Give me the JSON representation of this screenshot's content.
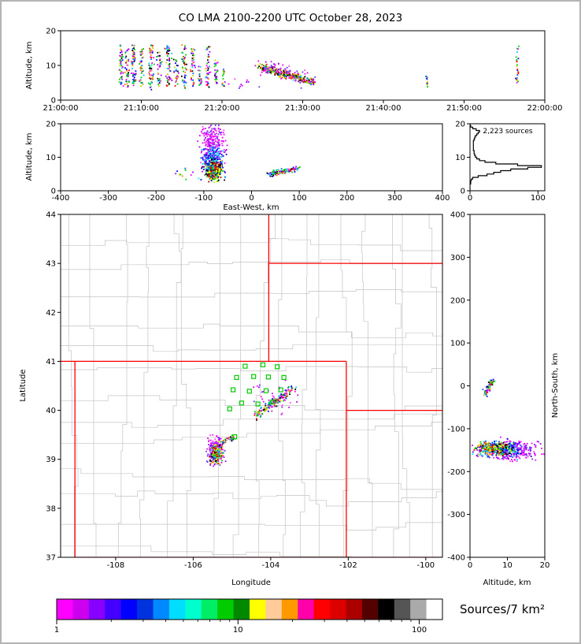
{
  "title": "CO LMA 2100-2200 UTC October 28, 2023",
  "colorbar": {
    "label": "Sources/7 km²",
    "log_max": 2.128,
    "colors": [
      "#ff00ff",
      "#cc00ee",
      "#8800ff",
      "#4400ff",
      "#0000ff",
      "#0033dd",
      "#0088ff",
      "#00ddff",
      "#00ffcc",
      "#00ee66",
      "#00cc00",
      "#008800",
      "#ffff00",
      "#ffcc99",
      "#ff9900",
      "#ff00aa",
      "#ff0000",
      "#dd0000",
      "#aa0000",
      "#550000",
      "#000000",
      "#555555",
      "#aaaaaa",
      "#ffffff"
    ],
    "major_ticks": [
      {
        "value": 1,
        "label": "1"
      },
      {
        "value": 10,
        "label": "10"
      },
      {
        "value": 100,
        "label": "100"
      }
    ],
    "minor_ticks": [
      2,
      3,
      4,
      5,
      6,
      7,
      8,
      9,
      20,
      30,
      40,
      50,
      60,
      70,
      80,
      90
    ]
  },
  "palettes": {
    "fringe": [
      "#ff00ff",
      "#ff00ff",
      "#cc00ee",
      "#9900ff",
      "#cc00ee",
      "#6633ff",
      "#ff44ff"
    ],
    "cool": [
      "#0000ff",
      "#0055ff",
      "#00aaff",
      "#00eeff",
      "#4400ee",
      "#0000cc",
      "#00ddff"
    ],
    "core": [
      "#00cc00",
      "#aaff00",
      "#ffff00",
      "#ff9900",
      "#ff0000",
      "#aa0000",
      "#000000",
      "#00ccff",
      "#0066ff",
      "#00cc00",
      "#ffff00",
      "#ff0000",
      "#000000"
    ],
    "mixed": [
      "#0000ff",
      "#00cc00",
      "#ff0000",
      "#00ccff",
      "#ff00ff",
      "#cccc00",
      "#9900ff",
      "#000000",
      "#0066ff",
      "#00cc00",
      "#ff8800"
    ]
  },
  "chart_data": [
    {
      "id": "time-height",
      "type": "scatter",
      "ylabel": "Altitude, km",
      "xlim": [
        0,
        3600
      ],
      "ylim": [
        0,
        20
      ],
      "seed": 11,
      "x_ticks": [
        {
          "v": 0,
          "label": "21:00:00"
        },
        {
          "v": 600,
          "label": "21:10:00"
        },
        {
          "v": 1200,
          "label": "21:20:00"
        },
        {
          "v": 1800,
          "label": "21:30:00"
        },
        {
          "v": 2400,
          "label": "21:40:00"
        },
        {
          "v": 3000,
          "label": "21:50:00"
        },
        {
          "v": 3600,
          "label": "22:00:00"
        }
      ],
      "y_ticks": [
        {
          "v": 0,
          "label": "0"
        },
        {
          "v": 10,
          "label": "10"
        },
        {
          "v": 20,
          "label": "20"
        }
      ],
      "clusters": [
        {
          "kind": "vline",
          "x": 450,
          "y0": 4,
          "y1": 16,
          "n": 45,
          "jx": 8,
          "palette": "mixed"
        },
        {
          "kind": "vline",
          "x": 497,
          "y0": 3.5,
          "y1": 15,
          "n": 40,
          "jx": 8,
          "palette": "mixed"
        },
        {
          "kind": "vline",
          "x": 545,
          "y0": 4,
          "y1": 16.5,
          "n": 50,
          "jx": 8,
          "palette": "mixed"
        },
        {
          "kind": "vline",
          "x": 603,
          "y0": 4,
          "y1": 15,
          "n": 38,
          "jx": 8,
          "palette": "mixed"
        },
        {
          "kind": "vline",
          "x": 672,
          "y0": 3,
          "y1": 16,
          "n": 55,
          "jx": 10,
          "palette": "mixed"
        },
        {
          "kind": "vline",
          "x": 732,
          "y0": 4,
          "y1": 14,
          "n": 32,
          "jx": 8,
          "palette": "mixed"
        },
        {
          "kind": "vline",
          "x": 800,
          "y0": 3.5,
          "y1": 16,
          "n": 50,
          "jx": 10,
          "palette": "mixed"
        },
        {
          "kind": "vline",
          "x": 860,
          "y0": 4,
          "y1": 12,
          "n": 26,
          "jx": 8,
          "palette": "mixed"
        },
        {
          "kind": "vline",
          "x": 919,
          "y0": 3,
          "y1": 16,
          "n": 46,
          "jx": 9,
          "palette": "mixed"
        },
        {
          "kind": "vline",
          "x": 983,
          "y0": 4,
          "y1": 15,
          "n": 40,
          "jx": 8,
          "palette": "mixed"
        },
        {
          "kind": "vline",
          "x": 1036,
          "y0": 4,
          "y1": 10,
          "n": 20,
          "jx": 7,
          "palette": "mixed"
        },
        {
          "kind": "vline",
          "x": 1095,
          "y0": 3.5,
          "y1": 16,
          "n": 44,
          "jx": 9,
          "palette": "mixed"
        },
        {
          "kind": "vline",
          "x": 1153,
          "y0": 4,
          "y1": 12,
          "n": 26,
          "jx": 8,
          "palette": "mixed"
        },
        {
          "kind": "vline",
          "x": 1212,
          "y0": 3.5,
          "y1": 9,
          "n": 16,
          "jx": 7,
          "palette": "mixed"
        },
        {
          "kind": "blob",
          "cx": 1340,
          "cy": 5,
          "sx": 70,
          "sy": 1.2,
          "n": 10,
          "palette": "fringe"
        },
        {
          "kind": "streak",
          "x0": 1480,
          "y0": 9.6,
          "x1": 1880,
          "y1": 5.0,
          "jx": 18,
          "jy": 0.5,
          "n": 330,
          "palette": "core"
        },
        {
          "kind": "streak",
          "x0": 1480,
          "y0": 10.2,
          "x1": 1880,
          "y1": 5.4,
          "jx": 25,
          "jy": 1.2,
          "n": 90,
          "palette": "fringe"
        },
        {
          "kind": "vline",
          "x": 2725,
          "y0": 3.5,
          "y1": 7,
          "n": 12,
          "jx": 5,
          "palette": "mixed"
        },
        {
          "kind": "vline",
          "x": 3395,
          "y0": 4,
          "y1": 16,
          "n": 26,
          "jx": 6,
          "palette": "mixed"
        }
      ]
    },
    {
      "id": "ew-height",
      "type": "scatter",
      "xlabel": "East-West, km",
      "ylabel": "Altitude, km",
      "xlim": [
        -400,
        400
      ],
      "ylim": [
        0,
        20
      ],
      "seed": 22,
      "x_ticks": [
        {
          "v": -400,
          "label": "-400"
        },
        {
          "v": -300,
          "label": "-300"
        },
        {
          "v": -200,
          "label": "-200"
        },
        {
          "v": -100,
          "label": "-100"
        },
        {
          "v": 0,
          "label": "0"
        },
        {
          "v": 100,
          "label": "100"
        },
        {
          "v": 200,
          "label": "200"
        },
        {
          "v": 300,
          "label": "300"
        },
        {
          "v": 400,
          "label": "400"
        }
      ],
      "y_ticks": [
        {
          "v": 0,
          "label": "0"
        },
        {
          "v": 10,
          "label": "10"
        },
        {
          "v": 20,
          "label": "20"
        }
      ],
      "clusters": [
        {
          "kind": "blob",
          "cx": -82,
          "cy": 13.5,
          "sx": 12,
          "sy": 3.2,
          "n": 260,
          "palette": "fringe"
        },
        {
          "kind": "blob",
          "cx": -80,
          "cy": 8.5,
          "sx": 11,
          "sy": 2.2,
          "n": 240,
          "palette": "cool"
        },
        {
          "kind": "blob",
          "cx": -79,
          "cy": 6,
          "sx": 9,
          "sy": 1.4,
          "n": 240,
          "palette": "core"
        },
        {
          "kind": "blob",
          "cx": -135,
          "cy": 5,
          "sx": 12,
          "sy": 0.8,
          "n": 10,
          "palette": "mixed"
        },
        {
          "kind": "streak",
          "x0": 38,
          "y0": 5.0,
          "x1": 100,
          "y1": 6.6,
          "jx": 4,
          "jy": 0.35,
          "n": 120,
          "palette": "mixed"
        }
      ]
    },
    {
      "id": "alt-histogram",
      "type": "line",
      "annotation": "2,223 sources",
      "xlim": [
        0,
        110
      ],
      "ylim": [
        0,
        20
      ],
      "bin_km": 0.5,
      "x_ticks": [
        {
          "v": 0,
          "label": "0"
        },
        {
          "v": 100,
          "label": "100"
        }
      ],
      "y_ticks": [
        {
          "v": 0,
          "label": "0"
        },
        {
          "v": 10,
          "label": "10"
        },
        {
          "v": 20,
          "label": "20"
        }
      ],
      "values": [
        0,
        0,
        0,
        0,
        1,
        1,
        2,
        4,
        12,
        25,
        35,
        45,
        60,
        85,
        105,
        70,
        38,
        22,
        14,
        10,
        8,
        7,
        6,
        6,
        5,
        5,
        5,
        5,
        5,
        5,
        6,
        7,
        8,
        10,
        12,
        14,
        9,
        4,
        1,
        0
      ]
    },
    {
      "id": "map",
      "type": "scatter",
      "xlabel": "Longitude",
      "ylabel": "Latitude",
      "xlim": [
        -109.42,
        -99.57
      ],
      "ylim": [
        37,
        44
      ],
      "seed": 33,
      "x_ticks": [
        {
          "v": -108,
          "label": "-108"
        },
        {
          "v": -106,
          "label": "-106"
        },
        {
          "v": -104,
          "label": "-104"
        },
        {
          "v": -102,
          "label": "-102"
        },
        {
          "v": -100,
          "label": "-100"
        }
      ],
      "y_ticks": [
        {
          "v": 37,
          "label": "37"
        },
        {
          "v": 38,
          "label": "38"
        },
        {
          "v": 39,
          "label": "39"
        },
        {
          "v": 40,
          "label": "40"
        },
        {
          "v": 41,
          "label": "41"
        },
        {
          "v": 42,
          "label": "42"
        },
        {
          "v": 43,
          "label": "43"
        },
        {
          "v": 44,
          "label": "44"
        }
      ],
      "state_border_color": "#ff0000",
      "county_color": "#c4c4c4",
      "station_color": "#00cc00",
      "state_borders": [
        [
          [
            -109.42,
            41
          ],
          [
            -109.05,
            41
          ]
        ],
        [
          [
            -109.05,
            41
          ],
          [
            -102.05,
            41
          ]
        ],
        [
          [
            -109.05,
            37
          ],
          [
            -109.05,
            41
          ]
        ],
        [
          [
            -102.05,
            37
          ],
          [
            -102.05,
            41
          ]
        ],
        [
          [
            -109.05,
            37
          ],
          [
            -102.05,
            37
          ]
        ],
        [
          [
            -104.05,
            41
          ],
          [
            -104.05,
            44
          ]
        ],
        [
          [
            -104.05,
            43
          ],
          [
            -99.57,
            43
          ]
        ],
        [
          [
            -102.05,
            40
          ],
          [
            -99.57,
            40
          ]
        ],
        [
          [
            -102.05,
            37
          ],
          [
            -99.57,
            37
          ]
        ]
      ],
      "stations": [
        [
          -104.66,
          40.9
        ],
        [
          -104.2,
          40.93
        ],
        [
          -103.83,
          40.89
        ],
        [
          -104.88,
          40.67
        ],
        [
          -104.44,
          40.69
        ],
        [
          -104.06,
          40.68
        ],
        [
          -103.66,
          40.67
        ],
        [
          -104.97,
          40.42
        ],
        [
          -104.55,
          40.39
        ],
        [
          -104.12,
          40.4
        ],
        [
          -103.74,
          40.42
        ],
        [
          -104.75,
          40.15
        ],
        [
          -104.33,
          40.13
        ],
        [
          -103.95,
          40.17
        ],
        [
          -105.06,
          40.03
        ],
        [
          -104.93,
          39.46
        ]
      ],
      "clusters": [
        {
          "kind": "blob",
          "cx": -105.42,
          "cy": 39.17,
          "sx": 0.1,
          "sy": 0.14,
          "n": 190,
          "palette": "fringe"
        },
        {
          "kind": "blob",
          "cx": -105.4,
          "cy": 39.12,
          "sx": 0.07,
          "sy": 0.09,
          "n": 170,
          "palette": "core"
        },
        {
          "kind": "streak",
          "x0": -105.3,
          "y0": 39.32,
          "x1": -104.95,
          "y1": 39.46,
          "jx": 0.03,
          "jy": 0.025,
          "n": 45,
          "palette": "mixed"
        },
        {
          "kind": "streak",
          "x0": -104.38,
          "y0": 39.88,
          "x1": -103.42,
          "y1": 40.47,
          "jx": 0.05,
          "jy": 0.035,
          "n": 150,
          "palette": "mixed"
        },
        {
          "kind": "blob",
          "cx": -103.85,
          "cy": 40.25,
          "sx": 0.28,
          "sy": 0.16,
          "n": 40,
          "palette": "fringe"
        }
      ]
    },
    {
      "id": "ns-alt",
      "type": "scatter",
      "xlabel": "Altitude, km",
      "ylabel": "North-South, km",
      "xlim": [
        0,
        20
      ],
      "ylim": [
        -400,
        400
      ],
      "seed": 44,
      "x_ticks": [
        {
          "v": 0,
          "label": "0"
        },
        {
          "v": 10,
          "label": "10"
        },
        {
          "v": 20,
          "label": "20"
        }
      ],
      "y_ticks": [
        {
          "v": 400,
          "label": "400"
        },
        {
          "v": 300,
          "label": "300"
        },
        {
          "v": 200,
          "label": "200"
        },
        {
          "v": 100,
          "label": "100"
        },
        {
          "v": 0,
          "label": "0"
        },
        {
          "v": -100,
          "label": "-100"
        },
        {
          "v": -200,
          "label": "-200"
        },
        {
          "v": -300,
          "label": "-300"
        },
        {
          "v": -400,
          "label": "-400"
        }
      ],
      "clusters": [
        {
          "kind": "streak",
          "x0": 3.8,
          "y0": -20,
          "x1": 6.2,
          "y1": 12,
          "jx": 0.3,
          "jy": 4,
          "n": 70,
          "palette": "mixed"
        },
        {
          "kind": "blob",
          "cx": 11,
          "cy": -150,
          "sx": 3.8,
          "sy": 11,
          "n": 260,
          "palette": "fringe"
        },
        {
          "kind": "blob",
          "cx": 8,
          "cy": -148,
          "sx": 3.0,
          "sy": 9,
          "n": 220,
          "palette": "cool"
        },
        {
          "kind": "blob",
          "cx": 6.5,
          "cy": -146,
          "sx": 2.2,
          "sy": 7,
          "n": 240,
          "palette": "core"
        }
      ]
    }
  ]
}
